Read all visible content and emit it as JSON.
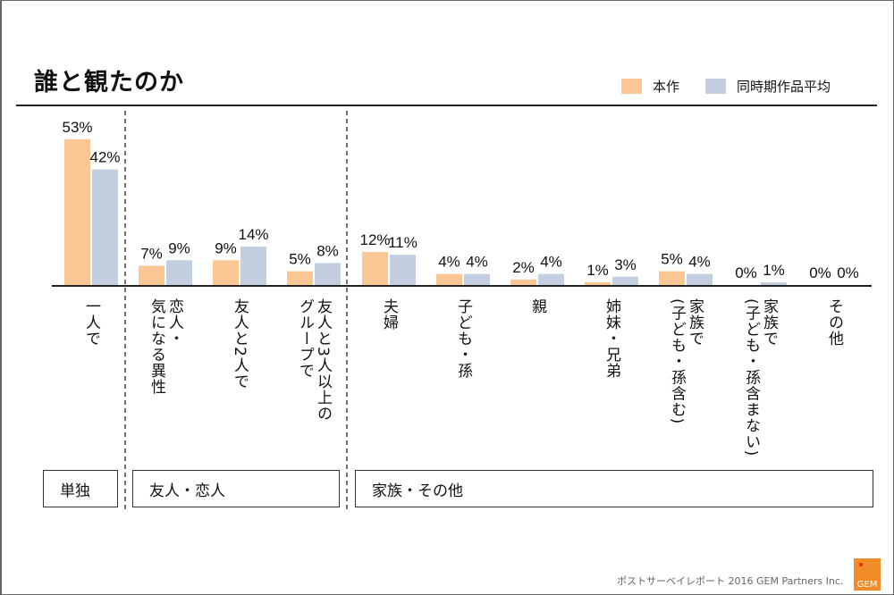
{
  "page": {
    "title": "誰と観たのか",
    "footer": "ポストサーベイレポート 2016  GEM Partners Inc.",
    "logo_text": "GEM"
  },
  "colors": {
    "series1": "#fcc794",
    "series2": "#c3cfe0",
    "logo": "#f28c28"
  },
  "groups": [
    {
      "label": "単独"
    },
    {
      "label": "友人・恋人"
    },
    {
      "label": "家族・その他"
    }
  ],
  "chart_data": {
    "type": "bar",
    "title": "誰と観たのか",
    "legend_position": "top-right",
    "categories": [
      "一人で",
      "恋人・\n気になる異性",
      "友人と2人で",
      "友人と3人以上の\nグループで",
      "夫婦",
      "子ども・孫",
      "親",
      "姉妹・兄弟",
      "家族で\n(子ども・孫含む)",
      "家族で\n(子ども・孫含まない)",
      "その他"
    ],
    "series": [
      {
        "name": "本作",
        "values": [
          53,
          7,
          9,
          5,
          12,
          4,
          2,
          1,
          5,
          0,
          0
        ]
      },
      {
        "name": "同時期作品平均",
        "values": [
          42,
          9,
          14,
          8,
          11,
          4,
          4,
          3,
          4,
          1,
          0
        ]
      }
    ],
    "value_suffix": "%",
    "ylim": [
      0,
      60
    ],
    "grid": false,
    "category_groups": [
      {
        "label": "単独",
        "categories": [
          0
        ]
      },
      {
        "label": "友人・恋人",
        "categories": [
          1,
          2,
          3
        ]
      },
      {
        "label": "家族・その他",
        "categories": [
          4,
          5,
          6,
          7,
          8,
          9,
          10
        ]
      }
    ]
  }
}
